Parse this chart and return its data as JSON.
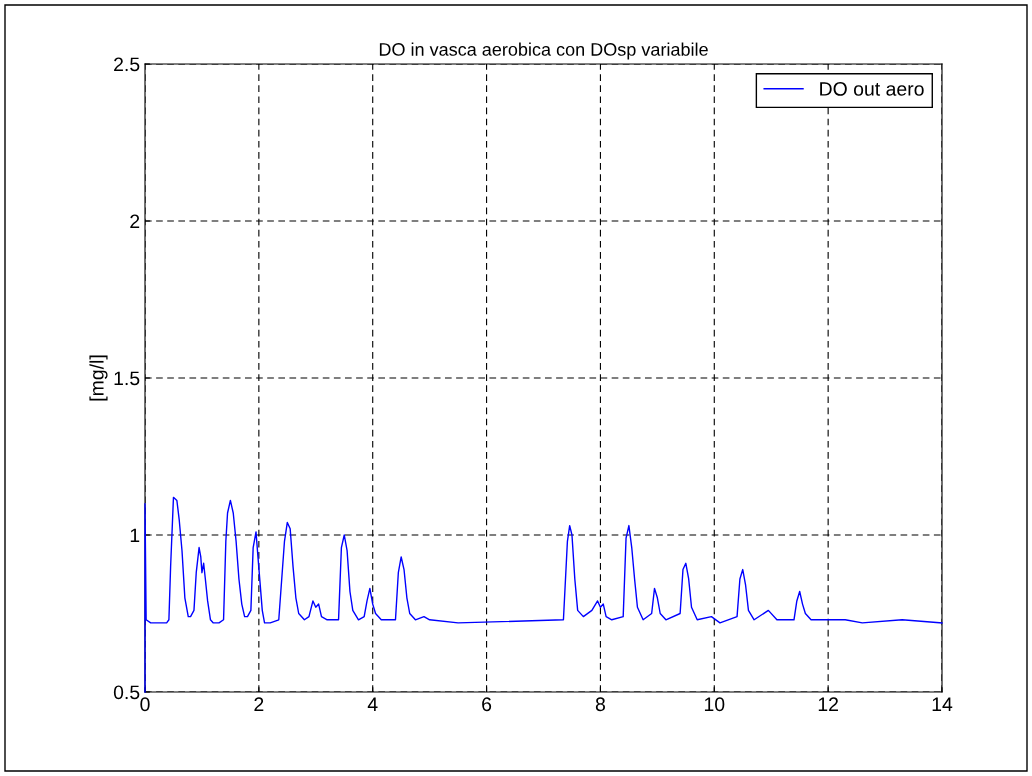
{
  "chart_data": {
    "type": "line",
    "title": "DO in vasca aerobica con DOsp variabile",
    "ylabel": "[mg/l]",
    "x": [
      0,
      0,
      0.02,
      0.1,
      0.38,
      0.42,
      0.45,
      0.5,
      0.56,
      0.6,
      0.65,
      0.7,
      0.76,
      0.8,
      0.86,
      0.9,
      0.95,
      0.98,
      1.0,
      1.03,
      1.06,
      1.1,
      1.15,
      1.2,
      1.3,
      1.38,
      1.42,
      1.45,
      1.5,
      1.55,
      1.6,
      1.65,
      1.7,
      1.75,
      1.8,
      1.86,
      1.9,
      1.95,
      1.98,
      2.02,
      2.06,
      2.1,
      2.2,
      2.35,
      2.45,
      2.5,
      2.55,
      2.6,
      2.65,
      2.7,
      2.8,
      2.88,
      2.95,
      3.0,
      3.05,
      3.1,
      3.2,
      3.4,
      3.45,
      3.5,
      3.55,
      3.6,
      3.65,
      3.75,
      3.85,
      3.9,
      3.95,
      4.0,
      4.05,
      4.15,
      4.4,
      4.45,
      4.5,
      4.55,
      4.6,
      4.65,
      4.75,
      4.9,
      5.0,
      5.5,
      7.35,
      7.42,
      7.46,
      7.5,
      7.55,
      7.6,
      7.7,
      7.85,
      7.95,
      8.0,
      8.05,
      8.1,
      8.2,
      8.4,
      8.45,
      8.5,
      8.55,
      8.6,
      8.65,
      8.75,
      8.9,
      8.95,
      9.0,
      9.05,
      9.15,
      9.4,
      9.45,
      9.5,
      9.55,
      9.6,
      9.7,
      9.95,
      10.1,
      10.4,
      10.45,
      10.5,
      10.55,
      10.6,
      10.7,
      10.95,
      11.1,
      11.4,
      11.45,
      11.5,
      11.55,
      11.6,
      11.7,
      12.3,
      12.6,
      13.3,
      14.0
    ],
    "series": [
      {
        "name": "DO out aero",
        "color": "#0000ff",
        "values": [
          0.5,
          1.1,
          0.73,
          0.72,
          0.72,
          0.73,
          0.9,
          1.12,
          1.11,
          1.05,
          0.95,
          0.8,
          0.74,
          0.74,
          0.76,
          0.88,
          0.96,
          0.93,
          0.88,
          0.91,
          0.86,
          0.79,
          0.73,
          0.72,
          0.72,
          0.73,
          0.98,
          1.07,
          1.11,
          1.07,
          0.98,
          0.86,
          0.78,
          0.74,
          0.74,
          0.76,
          0.96,
          1.01,
          0.94,
          0.85,
          0.76,
          0.72,
          0.72,
          0.73,
          0.98,
          1.04,
          1.02,
          0.9,
          0.8,
          0.75,
          0.73,
          0.74,
          0.79,
          0.77,
          0.78,
          0.74,
          0.73,
          0.73,
          0.96,
          1.0,
          0.95,
          0.82,
          0.76,
          0.73,
          0.74,
          0.79,
          0.83,
          0.78,
          0.75,
          0.73,
          0.73,
          0.88,
          0.93,
          0.89,
          0.8,
          0.75,
          0.73,
          0.74,
          0.73,
          0.72,
          0.73,
          0.98,
          1.03,
          1.0,
          0.86,
          0.76,
          0.74,
          0.76,
          0.79,
          0.77,
          0.78,
          0.74,
          0.73,
          0.74,
          0.99,
          1.03,
          0.96,
          0.86,
          0.77,
          0.73,
          0.75,
          0.83,
          0.8,
          0.75,
          0.73,
          0.75,
          0.89,
          0.91,
          0.86,
          0.77,
          0.73,
          0.74,
          0.72,
          0.74,
          0.86,
          0.89,
          0.84,
          0.76,
          0.73,
          0.76,
          0.73,
          0.73,
          0.79,
          0.82,
          0.78,
          0.75,
          0.73,
          0.73,
          0.72,
          0.73,
          0.72
        ]
      }
    ],
    "xlim": [
      0,
      14
    ],
    "ylim": [
      0.5,
      2.5
    ],
    "xticks": [
      0,
      2,
      4,
      6,
      8,
      10,
      12,
      14
    ],
    "yticks": [
      0.5,
      1,
      1.5,
      2,
      2.5
    ],
    "grid": true,
    "legend": "top right",
    "line_style": "solid",
    "marker": "none"
  }
}
